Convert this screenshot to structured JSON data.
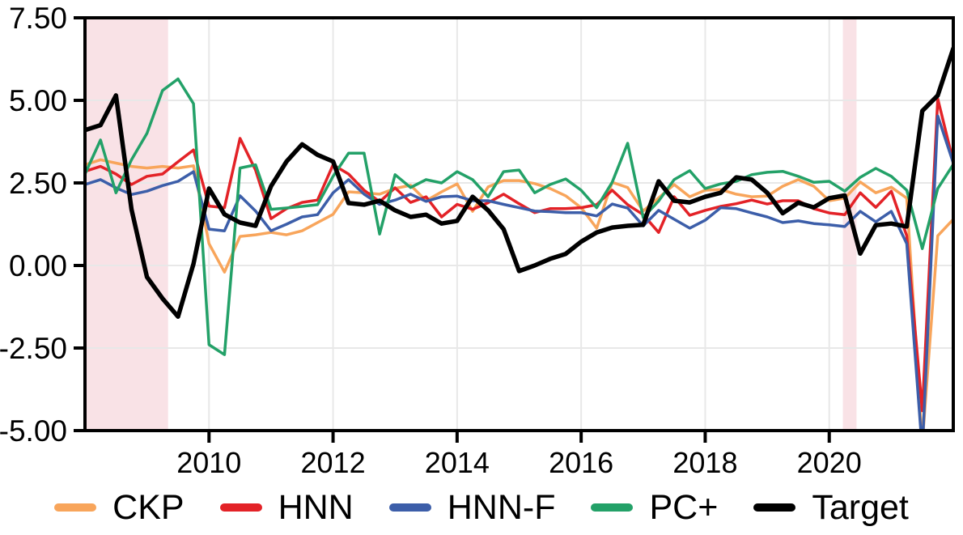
{
  "chart_data": {
    "type": "line",
    "title": "",
    "xlabel": "",
    "ylabel": "",
    "x_unit": "year, quarterly points",
    "xlim": [
      2008.0,
      2022.0
    ],
    "ylim": [
      -5.0,
      7.5
    ],
    "grid": true,
    "legend_position": "bottom",
    "background": "#ffffff",
    "gridline_color": "#e8e8e8",
    "frame_color": "#000000",
    "band_color": "#f9e2e6",
    "shaded_bands": [
      {
        "name": "recession-2008",
        "from": 2008.0,
        "to": 2009.34
      },
      {
        "name": "recession-2020",
        "from": 2020.22,
        "to": 2020.44
      }
    ],
    "y_ticks": {
      "values": [
        7.5,
        5.0,
        2.5,
        0.0,
        -2.5,
        -5.0
      ],
      "labels": [
        "7.50",
        "5.00",
        "2.50",
        "0.00",
        "-2.50",
        "-5.00"
      ]
    },
    "x_ticks": {
      "values": [
        2010,
        2012,
        2014,
        2016,
        2018,
        2020
      ],
      "labels": [
        "2010",
        "2012",
        "2014",
        "2016",
        "2018",
        "2020"
      ]
    },
    "x": [
      2008.0,
      2008.25,
      2008.5,
      2008.75,
      2009.0,
      2009.25,
      2009.5,
      2009.75,
      2010.0,
      2010.25,
      2010.5,
      2010.75,
      2011.0,
      2011.25,
      2011.5,
      2011.75,
      2012.0,
      2012.25,
      2012.5,
      2012.75,
      2013.0,
      2013.25,
      2013.5,
      2013.75,
      2014.0,
      2014.25,
      2014.5,
      2014.75,
      2015.0,
      2015.25,
      2015.5,
      2015.75,
      2016.0,
      2016.25,
      2016.5,
      2016.75,
      2017.0,
      2017.25,
      2017.5,
      2017.75,
      2018.0,
      2018.25,
      2018.5,
      2018.75,
      2019.0,
      2019.25,
      2019.5,
      2019.75,
      2020.0,
      2020.25,
      2020.5,
      2020.75,
      2021.0,
      2021.25,
      2021.5,
      2021.75,
      2022.0
    ],
    "series": [
      {
        "name": "CKP",
        "color": "#f8a55b",
        "width": 3.5,
        "values": [
          3.05,
          3.2,
          3.1,
          3.0,
          2.95,
          3.0,
          2.95,
          3.02,
          0.66,
          -0.2,
          0.88,
          0.93,
          1.0,
          0.93,
          1.05,
          1.3,
          1.55,
          2.23,
          2.2,
          2.16,
          2.33,
          2.43,
          1.96,
          2.23,
          2.47,
          1.64,
          2.38,
          2.57,
          2.57,
          2.48,
          2.33,
          2.11,
          1.75,
          1.13,
          2.52,
          2.36,
          1.65,
          2.05,
          2.45,
          2.08,
          2.28,
          2.3,
          2.16,
          2.08,
          2.1,
          2.4,
          2.6,
          2.4,
          1.96,
          2.04,
          2.53,
          2.2,
          2.37,
          2.04,
          -5.4,
          0.9,
          1.4
        ]
      },
      {
        "name": "HNN",
        "color": "#e32227",
        "width": 3.5,
        "values": [
          2.85,
          3.0,
          2.77,
          2.45,
          2.7,
          2.77,
          3.14,
          3.5,
          1.8,
          1.75,
          3.85,
          2.89,
          1.42,
          1.72,
          1.91,
          1.98,
          3.05,
          2.77,
          2.28,
          1.93,
          2.35,
          1.91,
          2.08,
          1.47,
          1.85,
          1.7,
          1.9,
          2.16,
          1.87,
          1.6,
          1.72,
          1.72,
          1.75,
          1.84,
          2.28,
          1.84,
          1.54,
          1.0,
          2.08,
          1.52,
          1.67,
          1.79,
          1.87,
          1.98,
          1.86,
          1.96,
          1.96,
          1.72,
          1.59,
          1.54,
          2.2,
          1.76,
          2.25,
          0.9,
          -4.4,
          5.05,
          3.14
        ]
      },
      {
        "name": "HNN-F",
        "color": "#3c5ea9",
        "width": 3.5,
        "values": [
          2.45,
          2.6,
          2.35,
          2.15,
          2.25,
          2.42,
          2.55,
          2.84,
          1.1,
          1.05,
          2.11,
          1.65,
          1.05,
          1.25,
          1.47,
          1.54,
          2.2,
          2.6,
          2.16,
          1.85,
          1.98,
          2.16,
          1.94,
          2.08,
          2.1,
          1.96,
          1.96,
          1.85,
          1.75,
          1.65,
          1.63,
          1.6,
          1.6,
          1.5,
          1.86,
          1.74,
          1.2,
          1.67,
          1.4,
          1.13,
          1.37,
          1.75,
          1.72,
          1.59,
          1.47,
          1.3,
          1.35,
          1.27,
          1.23,
          1.18,
          1.64,
          1.32,
          1.64,
          0.66,
          -5.6,
          4.53,
          3.1
        ]
      },
      {
        "name": "PC+",
        "color": "#23a168",
        "width": 3.5,
        "values": [
          2.77,
          3.8,
          2.2,
          3.2,
          4.0,
          5.3,
          5.65,
          4.9,
          -2.4,
          -2.7,
          2.95,
          3.05,
          1.7,
          1.74,
          1.79,
          1.84,
          2.7,
          3.4,
          3.4,
          0.95,
          2.75,
          2.36,
          2.6,
          2.5,
          2.84,
          2.6,
          2.08,
          2.84,
          2.89,
          2.2,
          2.45,
          2.62,
          2.28,
          1.75,
          2.52,
          3.7,
          1.45,
          1.95,
          2.6,
          2.87,
          2.33,
          2.47,
          2.55,
          2.75,
          2.82,
          2.85,
          2.7,
          2.52,
          2.55,
          2.25,
          2.67,
          2.94,
          2.7,
          2.28,
          0.51,
          2.33,
          3.06
        ]
      },
      {
        "name": "Target",
        "color": "#000000",
        "width": 5.5,
        "values": [
          4.1,
          4.25,
          5.15,
          1.7,
          -0.35,
          -1.0,
          -1.55,
          0.05,
          2.33,
          1.55,
          1.3,
          1.2,
          2.4,
          3.15,
          3.67,
          3.35,
          3.15,
          1.89,
          1.84,
          1.96,
          1.67,
          1.47,
          1.54,
          1.27,
          1.35,
          2.08,
          1.67,
          1.1,
          -0.17,
          0.0,
          0.2,
          0.35,
          0.72,
          1.0,
          1.15,
          1.2,
          1.23,
          2.55,
          1.96,
          1.91,
          2.08,
          2.2,
          2.67,
          2.6,
          2.2,
          1.58,
          1.9,
          1.76,
          2.04,
          2.12,
          0.36,
          1.22,
          1.27,
          1.18,
          4.68,
          5.15,
          6.57
        ]
      }
    ],
    "legend": [
      "CKP",
      "HNN",
      "HNN-F",
      "PC+",
      "Target"
    ]
  }
}
